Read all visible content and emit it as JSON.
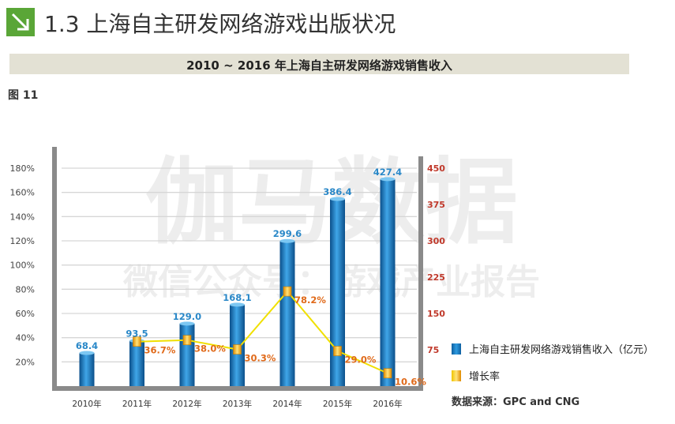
{
  "header": {
    "title": "1.3 上海自主研发网络游戏出版状况",
    "banner": "2010 ~ 2016 年上海自主研发网络游戏销售收入",
    "figure_label": "图 11"
  },
  "watermark": {
    "line1": "伽马数据",
    "line2": "微信公众号：游戏产业报告"
  },
  "legend": {
    "revenue": "上海自主研发网络游戏销售收入（亿元）",
    "growth": "增长率"
  },
  "source": "数据来源：GPC and CNG",
  "colors": {
    "bar": "#1a7cc4",
    "line": "#f0e000",
    "bar_label": "#2a88c8",
    "growth_label": "#e06a1a",
    "right_axis": "#c0392b"
  },
  "chart_data": {
    "type": "bar",
    "categories": [
      "2010年",
      "2011年",
      "2012年",
      "2013年",
      "2014年",
      "2015年",
      "2016年"
    ],
    "series": [
      {
        "name": "上海自主研发网络游戏销售收入（亿元）",
        "type": "bar",
        "axis": "right",
        "values": [
          68.4,
          93.5,
          129.0,
          168.1,
          299.6,
          386.4,
          427.4
        ],
        "labels": [
          "68.4",
          "93.5",
          "129.0",
          "168.1",
          "299.6",
          "386.4",
          "427.4"
        ]
      },
      {
        "name": "增长率",
        "type": "line",
        "axis": "left",
        "values": [
          null,
          36.7,
          38.0,
          30.3,
          78.2,
          29.0,
          10.6
        ],
        "labels": [
          "",
          "36.7%",
          "38.0%",
          "30.3%",
          "78.2%",
          "29.0%",
          "10.6%"
        ]
      }
    ],
    "left_axis": {
      "ticks": [
        "20%",
        "40%",
        "60%",
        "80%",
        "100%",
        "120%",
        "140%",
        "160%",
        "180%"
      ],
      "range": [
        0,
        180
      ]
    },
    "right_axis": {
      "ticks": [
        "75",
        "150",
        "225",
        "300",
        "375",
        "450"
      ],
      "range": [
        0,
        450
      ]
    },
    "grid": true,
    "legend_position": "right"
  }
}
